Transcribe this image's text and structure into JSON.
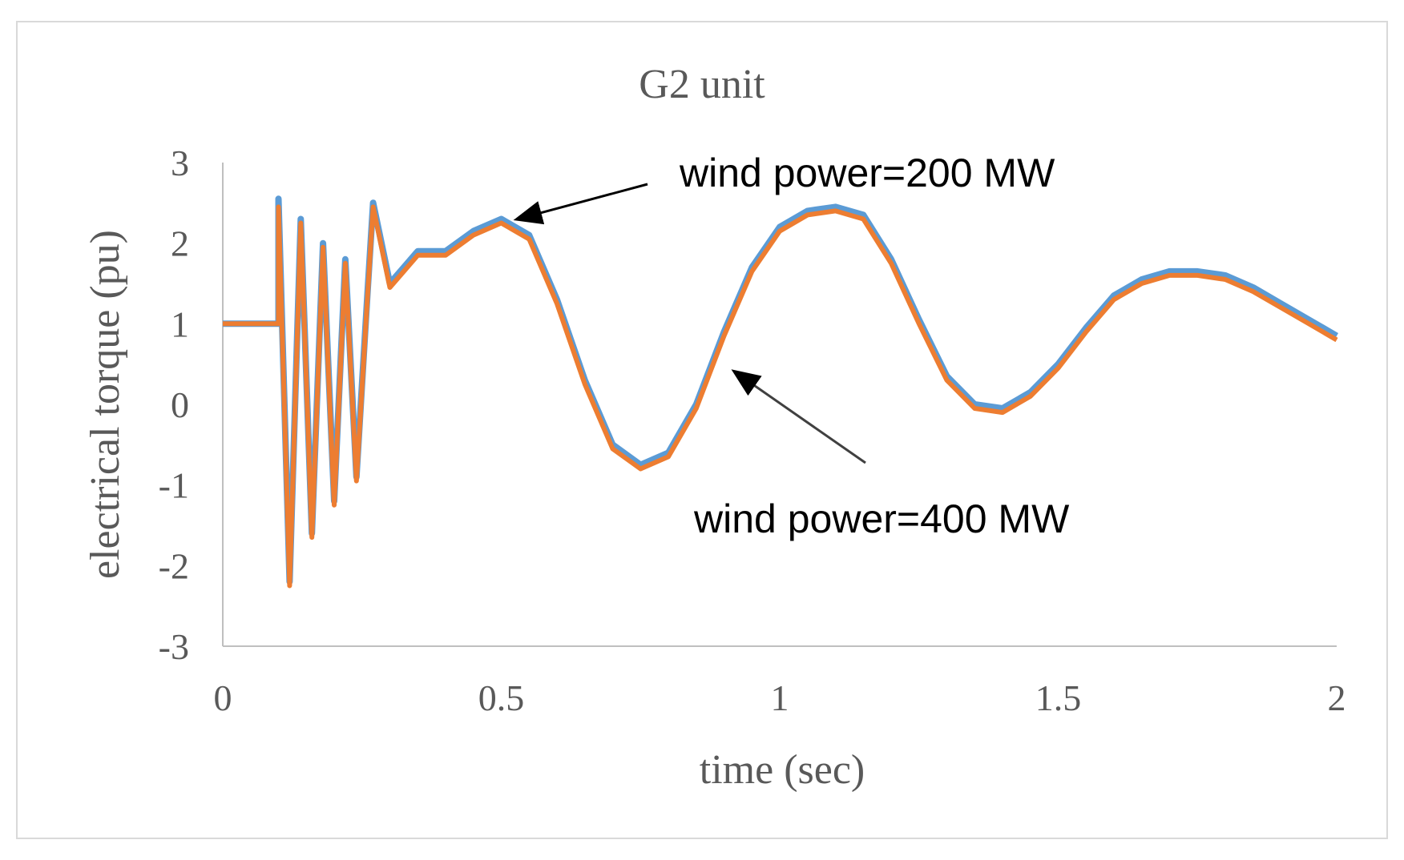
{
  "chart_data": {
    "type": "line",
    "title": "G2 unit",
    "xlabel": "time (sec)",
    "ylabel": "electrical torque (pu)",
    "xlim": [
      0,
      2
    ],
    "ylim": [
      -3,
      3
    ],
    "x_ticks": [
      "0",
      "0.5",
      "1",
      "1.5",
      "2"
    ],
    "y_ticks": [
      "3",
      "2",
      "1",
      "0",
      "-1",
      "-2",
      "-3"
    ],
    "grid": false,
    "legend": "none",
    "colors": {
      "series_200": "#5b9bd5",
      "series_400": "#ed7d31",
      "axis": "#bfbfbf",
      "text": "#595959"
    },
    "series": [
      {
        "x": [
          0,
          0.05,
          0.1,
          0.1,
          0.12,
          0.14,
          0.16,
          0.18,
          0.2,
          0.22,
          0.24,
          0.26,
          0.27,
          0.3,
          0.35,
          0.4,
          0.45,
          0.5,
          0.55,
          0.6,
          0.65,
          0.7,
          0.75,
          0.8,
          0.85,
          0.9,
          0.95,
          1.0,
          1.05,
          1.1,
          1.15,
          1.2,
          1.25,
          1.3,
          1.35,
          1.4,
          1.45,
          1.5,
          1.55,
          1.6,
          1.65,
          1.7,
          1.75,
          1.8,
          1.85,
          1.9,
          1.95,
          2.0
        ],
        "values": [
          1.0,
          1.0,
          1.0,
          2.55,
          -2.2,
          2.3,
          -1.6,
          2.0,
          -1.2,
          1.8,
          -0.9,
          1.4,
          2.5,
          1.5,
          1.9,
          1.9,
          2.15,
          2.3,
          2.1,
          1.3,
          0.3,
          -0.5,
          -0.75,
          -0.6,
          0.0,
          0.9,
          1.7,
          2.2,
          2.4,
          2.45,
          2.35,
          1.8,
          1.05,
          0.35,
          0.0,
          -0.05,
          0.15,
          0.5,
          0.95,
          1.35,
          1.55,
          1.65,
          1.65,
          1.6,
          1.45,
          1.25,
          1.05,
          0.85
        ]
      },
      {
        "x": [
          0,
          0.05,
          0.1,
          0.1,
          0.12,
          0.14,
          0.16,
          0.18,
          0.2,
          0.22,
          0.24,
          0.26,
          0.27,
          0.3,
          0.35,
          0.4,
          0.45,
          0.5,
          0.55,
          0.6,
          0.65,
          0.7,
          0.75,
          0.8,
          0.85,
          0.9,
          0.95,
          1.0,
          1.05,
          1.1,
          1.15,
          1.2,
          1.25,
          1.3,
          1.35,
          1.4,
          1.45,
          1.5,
          1.55,
          1.6,
          1.65,
          1.7,
          1.75,
          1.8,
          1.85,
          1.9,
          1.95,
          2.0
        ],
        "values": [
          1.0,
          1.0,
          1.0,
          2.45,
          -2.25,
          2.25,
          -1.65,
          1.95,
          -1.25,
          1.75,
          -0.95,
          1.35,
          2.45,
          1.45,
          1.85,
          1.85,
          2.1,
          2.25,
          2.05,
          1.25,
          0.25,
          -0.55,
          -0.8,
          -0.65,
          -0.05,
          0.85,
          1.65,
          2.15,
          2.35,
          2.4,
          2.3,
          1.75,
          1.0,
          0.3,
          -0.05,
          -0.1,
          0.1,
          0.45,
          0.9,
          1.3,
          1.5,
          1.6,
          1.6,
          1.55,
          1.4,
          1.2,
          1.0,
          0.8
        ]
      }
    ],
    "annotations": [
      {
        "text": "wind power=200 MW",
        "target": [
          0.53,
          2.3
        ]
      },
      {
        "text": "wind power=400 MW",
        "target": [
          0.92,
          0.4
        ]
      }
    ]
  }
}
